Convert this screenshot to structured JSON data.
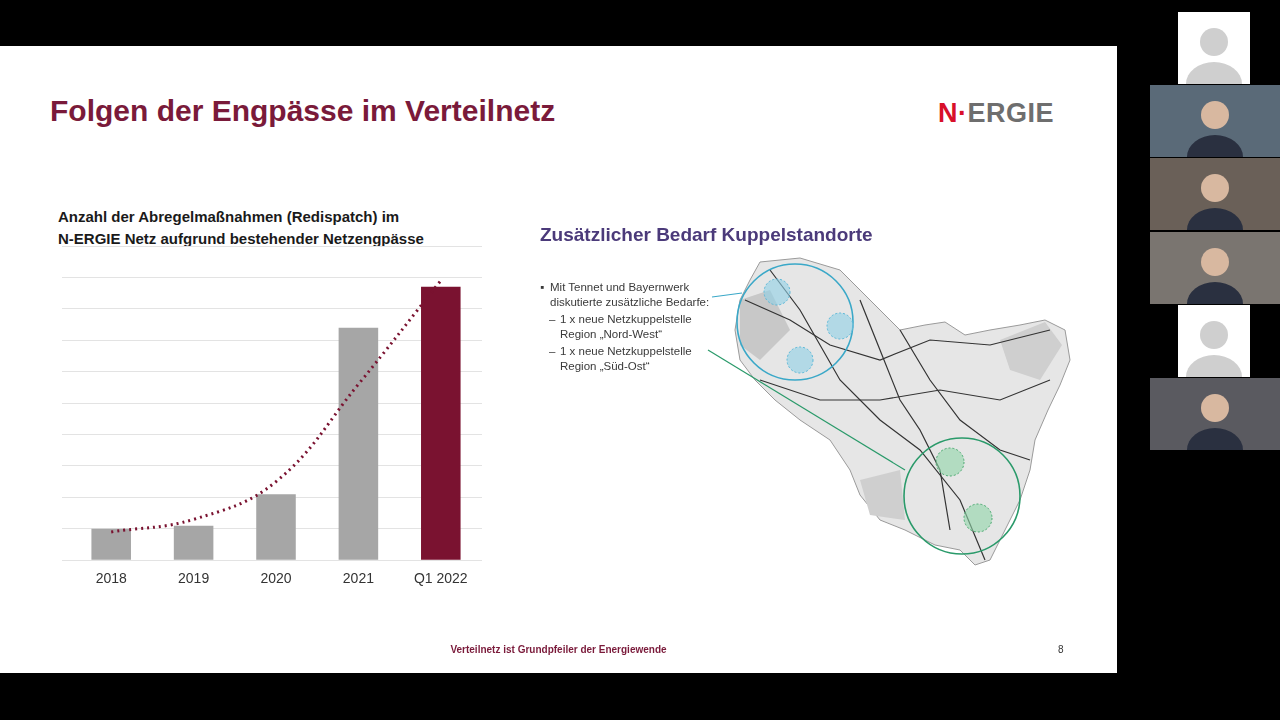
{
  "slide": {
    "title": "Folgen der Engpässe im Verteilnetz",
    "logo": "N·ERGIE",
    "map_panel": {
      "title": "Zusätzlicher Bedarf Kuppelstandorte",
      "bullet": [
        "Mit Tennet und Bayernwerk",
        "diskutierte zusätzliche Bedarfe:"
      ],
      "sub_bullets": [
        [
          "1 x neue Netzkuppelstelle",
          "Region „Nord-West“"
        ],
        [
          "1 x neue Netzkuppelstelle",
          "Region „Süd-Ost“"
        ]
      ]
    },
    "footer": "Verteilnetz ist Grundpfeiler der Energiewende",
    "page_number": "8"
  },
  "chart_data": {
    "type": "bar",
    "title": [
      "Anzahl der Abregelmaßnahmen (Redispatch) im",
      "N-ERGIE Netz aufgrund bestehender Netzengpässe"
    ],
    "categories": [
      "2018",
      "2019",
      "2020",
      "2021",
      "Q1 2022"
    ],
    "series": [
      {
        "type": "bar",
        "colors": [
          "#a6a6a6",
          "#a6a6a6",
          "#a6a6a6",
          "#a6a6a6",
          "#7a1230"
        ],
        "values": [
          1.0,
          1.1,
          2.1,
          7.4,
          8.7
        ]
      },
      {
        "type": "line",
        "line_style": "dotted",
        "color": "#7a1230",
        "values": [
          0.9,
          1.3,
          2.5,
          5.6,
          8.9
        ]
      }
    ],
    "ylim": [
      0,
      10
    ],
    "yticks": [
      0,
      1,
      2,
      3,
      4,
      5,
      6,
      7,
      8,
      9,
      10
    ],
    "grid": true,
    "tick_labels": "x"
  }
}
